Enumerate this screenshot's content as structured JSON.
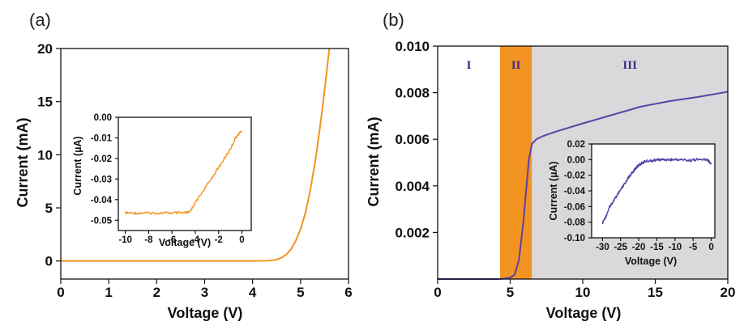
{
  "colors": {
    "orange": "#F39321",
    "purple": "#5B43A6",
    "gray_region": "#D9D9DB",
    "region_label_purple": "#3F2B86"
  },
  "chart_data": [
    {
      "type": "line",
      "panel_label": "(a)",
      "xlabel": "Voltage (V)",
      "ylabel": "Current (mA)",
      "xlim": [
        0,
        6
      ],
      "ylim": [
        -1.7,
        20
      ],
      "xticks": [
        0,
        1,
        2,
        3,
        4,
        5,
        6
      ],
      "yticks": [
        0,
        5,
        10,
        15,
        20
      ],
      "series": [
        {
          "color": "#F39321",
          "x": [
            0,
            1,
            2,
            3,
            4,
            4.3,
            4.5,
            4.6,
            4.7,
            4.8,
            4.9,
            5.0,
            5.1,
            5.2,
            5.3,
            5.4,
            5.5,
            5.6
          ],
          "y": [
            0,
            0,
            0,
            0,
            0,
            0.02,
            0.12,
            0.3,
            0.6,
            1.1,
            1.9,
            3.0,
            4.5,
            6.6,
            9.2,
            12.4,
            16.0,
            20.0
          ]
        }
      ],
      "inset": {
        "xlabel": "Voltage (V)",
        "ylabel": "Current (µA)",
        "xlim": [
          -10.6,
          0.8
        ],
        "ylim": [
          -0.055,
          0.0
        ],
        "xticks": [
          -10,
          -8,
          -6,
          -4,
          -2,
          0
        ],
        "yticks": [
          0.0,
          -0.01,
          -0.02,
          -0.03,
          -0.04,
          -0.05
        ],
        "ytick_labels": [
          "0.00",
          "-0.01",
          "-0.02",
          "-0.03",
          "-0.04",
          "-0.05"
        ],
        "series": [
          {
            "color": "#F39321",
            "x": [
              -10,
              -9,
              -8,
              -7,
              -6,
              -5,
              -4.5,
              -4,
              -3,
              -2,
              -1,
              -0.5,
              0
            ],
            "y": [
              -0.0465,
              -0.0465,
              -0.0465,
              -0.0465,
              -0.0465,
              -0.0465,
              -0.0462,
              -0.0415,
              -0.033,
              -0.0245,
              -0.0155,
              -0.0095,
              -0.0065
            ]
          }
        ]
      }
    },
    {
      "type": "line",
      "panel_label": "(b)",
      "xlabel": "Voltage (V)",
      "ylabel": "Current (mA)",
      "xlim": [
        0,
        20
      ],
      "ylim": [
        0,
        0.01
      ],
      "xticks": [
        0,
        5,
        10,
        15,
        20
      ],
      "yticks": [
        0.002,
        0.004,
        0.006,
        0.008,
        0.01
      ],
      "ytick_labels": [
        "0.002",
        "0.004",
        "0.006",
        "0.008",
        "0.010"
      ],
      "regions": [
        {
          "label": "I",
          "x": [
            0,
            4.3
          ],
          "color": "#FFFFFF"
        },
        {
          "label": "II",
          "x": [
            4.3,
            6.5
          ],
          "color": "#F39321"
        },
        {
          "label": "III",
          "x": [
            6.5,
            20
          ],
          "color": "#D9D9DB"
        }
      ],
      "series": [
        {
          "color": "#5B43A6",
          "x": [
            0,
            4.0,
            4.5,
            5.0,
            5.3,
            5.6,
            5.9,
            6.1,
            6.3,
            6.5,
            6.8,
            7.2,
            8,
            10,
            12,
            14,
            16,
            18,
            20
          ],
          "y": [
            0,
            0,
            1e-05,
            6e-05,
            0.00018,
            0.0008,
            0.0024,
            0.0038,
            0.0052,
            0.0058,
            0.006,
            0.00612,
            0.0063,
            0.00668,
            0.00704,
            0.0074,
            0.00764,
            0.00782,
            0.00804
          ]
        }
      ],
      "inset": {
        "xlabel": "Voltage (V)",
        "ylabel": "Current (µA)",
        "xlim": [
          -33,
          1
        ],
        "ylim": [
          -0.1,
          0.02
        ],
        "xticks": [
          -30,
          -25,
          -20,
          -15,
          -10,
          -5,
          0
        ],
        "yticks": [
          0.02,
          0.0,
          -0.02,
          -0.04,
          -0.06,
          -0.08,
          -0.1
        ],
        "ytick_labels": [
          "0.02",
          "0.00",
          "-0.02",
          "-0.04",
          "-0.06",
          "-0.08",
          "-0.10"
        ],
        "series": [
          {
            "color": "#5B43A6",
            "x": [
              -30,
              -29,
              -28,
              -27,
              -26,
              -25,
              -24,
              -23,
              -22,
              -21,
              -20,
              -19,
              -18,
              -16,
              -14,
              -12,
              -10,
              -8,
              -6,
              -4,
              -2,
              -1,
              0
            ],
            "y": [
              -0.081,
              -0.072,
              -0.06,
              -0.053,
              -0.046,
              -0.039,
              -0.032,
              -0.024,
              -0.018,
              -0.012,
              -0.007,
              -0.004,
              -0.002,
              -0.001,
              0.0,
              0.0,
              0.0,
              0.0,
              -0.001,
              0.0,
              0.0,
              0.0,
              -0.006
            ]
          }
        ]
      }
    }
  ]
}
